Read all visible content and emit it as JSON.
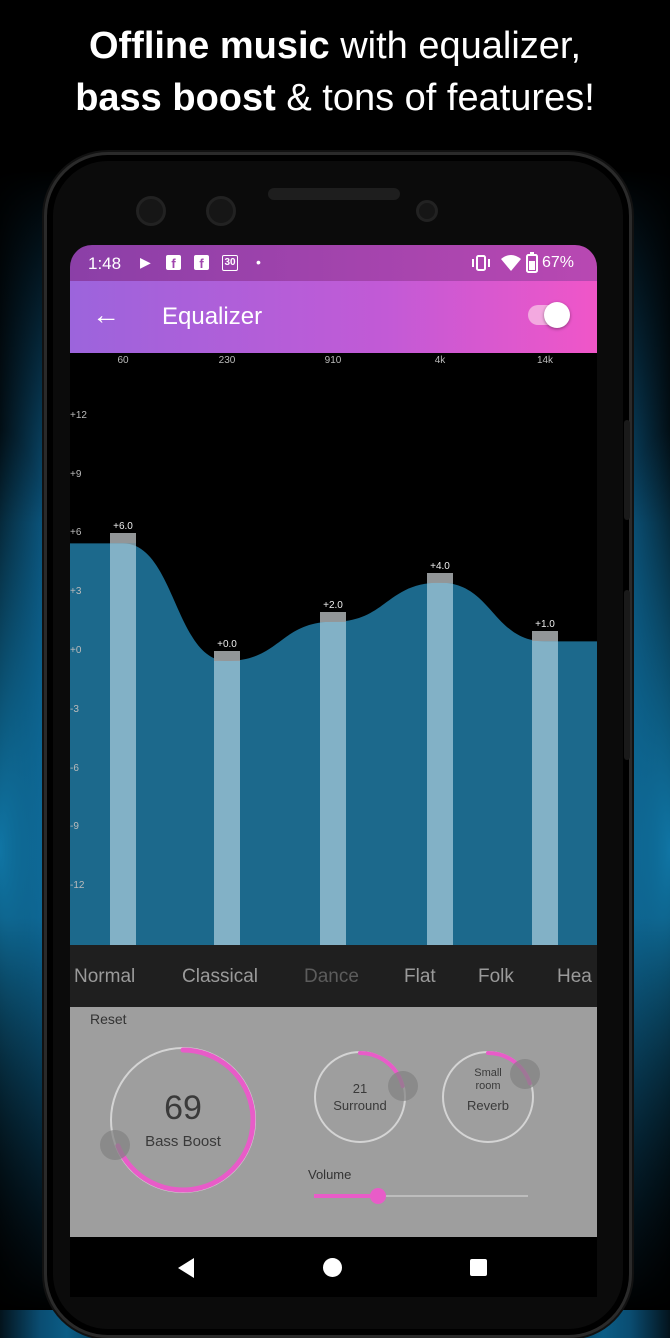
{
  "headline": {
    "line1_bold": "Offline music",
    "line1_rest": " with equalizer,",
    "line2_bold": "bass boost",
    "line2_rest": " & tons of features!"
  },
  "statusbar": {
    "time": "1:48",
    "calendar_day": "30",
    "battery": "67%"
  },
  "appbar": {
    "title": "Equalizer",
    "enabled": true
  },
  "equalizer": {
    "bands": [
      {
        "freq": "60",
        "value": 6.0,
        "label": "+6.0"
      },
      {
        "freq": "230",
        "value": 0.0,
        "label": "+0.0"
      },
      {
        "freq": "910",
        "value": 2.0,
        "label": "+2.0"
      },
      {
        "freq": "4k",
        "value": 4.0,
        "label": "+4.0"
      },
      {
        "freq": "14k",
        "value": 1.0,
        "label": "+1.0"
      }
    ],
    "db_labels": [
      "+12",
      "+9",
      "+6",
      "+3",
      "+0",
      "-3",
      "-6",
      "-9",
      "-12"
    ],
    "range": [
      -15,
      15
    ]
  },
  "presets": {
    "items": [
      "Normal",
      "Classical",
      "Dance",
      "Flat",
      "Folk",
      "Hea"
    ],
    "selected": "Dance"
  },
  "controls": {
    "reset_label": "Reset",
    "bass_boost": {
      "value": "69",
      "label": "Bass Boost",
      "fraction": 0.69
    },
    "surround": {
      "value": "21",
      "label": "Surround",
      "fraction": 0.21
    },
    "reverb": {
      "value_line1": "Small",
      "value_line2": "room",
      "label": "Reverb",
      "fraction": 0.2
    },
    "volume": {
      "label": "Volume",
      "fraction": 0.3
    }
  },
  "colors": {
    "accent": "#e85cc8",
    "curve_fill": "#1e6f93",
    "slider_blue": "#4ea7d8"
  },
  "icons": {
    "play": "play-icon",
    "facebook": "facebook-icon",
    "calendar": "calendar-icon",
    "vibrate": "vibrate-icon",
    "wifi": "wifi-icon",
    "battery": "battery-icon",
    "back": "arrow-back-icon",
    "nav_back": "nav-back-icon",
    "nav_home": "nav-home-icon",
    "nav_recent": "nav-recent-icon"
  }
}
